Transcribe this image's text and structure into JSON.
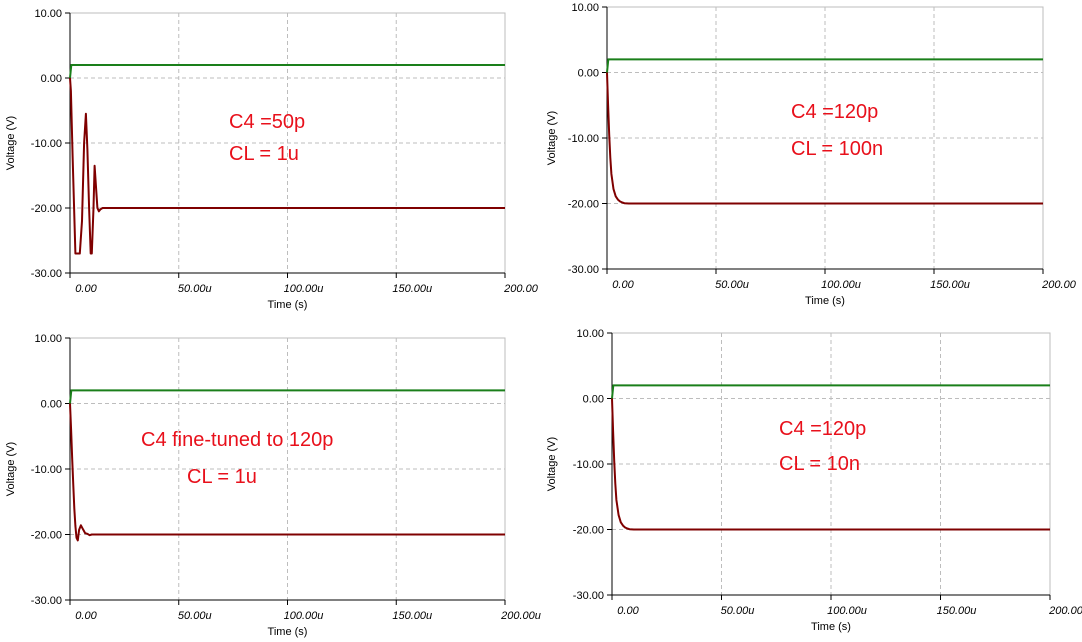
{
  "colors": {
    "green": "#1a7f1a",
    "red": "#7f0000",
    "annotation": "#e8101b",
    "grid": "#bdbdbd"
  },
  "chart_data": [
    {
      "type": "line",
      "xlabel": "Time (s)",
      "ylabel": "Voltage (V)",
      "xlim": [
        0,
        200
      ],
      "ylim": [
        -30,
        10
      ],
      "x_unit": "microseconds",
      "x_ticks": [
        "0.00",
        "50.00u",
        "100.00u",
        "150.00u",
        "200.00"
      ],
      "y_ticks": [
        "10.00",
        "0.00",
        "-10.00",
        "-20.00",
        "-30.00"
      ],
      "grid": true,
      "annotations": [
        "C4 =50p",
        "CL = 1u"
      ],
      "series": [
        {
          "color": "green",
          "x": [
            0,
            0.6,
            200
          ],
          "y": [
            0,
            2,
            2
          ]
        },
        {
          "color": "red",
          "x": [
            0,
            0.4,
            1.2,
            2.5,
            3.5,
            4.5,
            5.5,
            6.5,
            7.3,
            8.0,
            8.8,
            9.5,
            10.0,
            10.8,
            11.3,
            12.0,
            12.6,
            13.3,
            14.0,
            15.0,
            17.0,
            200
          ],
          "y": [
            0,
            -2,
            -12,
            -27,
            -27,
            -27,
            -22,
            -10,
            -5.5,
            -11,
            -20,
            -27,
            -27,
            -20,
            -13.5,
            -17,
            -20,
            -20.5,
            -20.2,
            -20,
            -20,
            -20
          ]
        }
      ]
    },
    {
      "type": "line",
      "xlabel": "Time (s)",
      "ylabel": "Voltage (V)",
      "xlim": [
        0,
        200
      ],
      "ylim": [
        -30,
        10
      ],
      "x_unit": "microseconds",
      "x_ticks": [
        "0.00",
        "50.00u",
        "100.00u",
        "150.00u",
        "200.00"
      ],
      "y_ticks": [
        "10.00",
        "0.00",
        "-10.00",
        "-20.00",
        "-30.00"
      ],
      "grid": true,
      "annotations": [
        "C4 =120p",
        "CL = 100n"
      ],
      "series": [
        {
          "color": "green",
          "x": [
            0,
            0.6,
            200
          ],
          "y": [
            0,
            2,
            2
          ]
        },
        {
          "color": "red",
          "x": [
            0,
            0.5,
            1,
            1.5,
            2,
            3,
            4,
            5,
            6,
            7,
            8,
            10,
            12,
            200
          ],
          "y": [
            0,
            -5,
            -9.5,
            -13,
            -15.5,
            -17.8,
            -18.9,
            -19.4,
            -19.7,
            -19.85,
            -19.95,
            -20,
            -20,
            -20
          ]
        }
      ]
    },
    {
      "type": "line",
      "xlabel": "Time (s)",
      "ylabel": "Voltage (V)",
      "xlim": [
        0,
        200
      ],
      "ylim": [
        -30,
        10
      ],
      "x_unit": "microseconds",
      "x_ticks": [
        "0.00",
        "50.00u",
        "100.00u",
        "150.00u",
        "200.00u"
      ],
      "y_ticks": [
        "10.00",
        "0.00",
        "-10.00",
        "-20.00",
        "-30.00"
      ],
      "grid": true,
      "annotations": [
        "C4 fine-tuned to 120p",
        "CL = 1u"
      ],
      "series": [
        {
          "color": "green",
          "x": [
            0,
            0.6,
            200
          ],
          "y": [
            0,
            2,
            2
          ]
        },
        {
          "color": "red",
          "x": [
            0,
            0.5,
            1,
            1.5,
            2,
            2.5,
            3,
            3.6,
            4.2,
            5,
            6,
            7,
            8,
            9,
            10,
            12,
            200
          ],
          "y": [
            0,
            -4,
            -8.5,
            -12.5,
            -16,
            -18.7,
            -20.5,
            -20.9,
            -19.3,
            -18.6,
            -19.2,
            -19.8,
            -19.9,
            -20.1,
            -20,
            -20,
            -20
          ]
        }
      ]
    },
    {
      "type": "line",
      "xlabel": "Time (s)",
      "ylabel": "Voltage (V)",
      "xlim": [
        0,
        200
      ],
      "ylim": [
        -30,
        10
      ],
      "x_unit": "microseconds",
      "x_ticks": [
        "0.00",
        "50.00u",
        "100.00u",
        "150.00u",
        "200.00"
      ],
      "y_ticks": [
        "10.00",
        "0.00",
        "-10.00",
        "-20.00",
        "-30.00"
      ],
      "grid": true,
      "annotations": [
        "C4 =120p",
        "CL = 10n"
      ],
      "series": [
        {
          "color": "green",
          "x": [
            0,
            0.6,
            200
          ],
          "y": [
            0,
            2,
            2
          ]
        },
        {
          "color": "red",
          "x": [
            0,
            0.5,
            1,
            1.5,
            2,
            3,
            4,
            5,
            6,
            7,
            8,
            10,
            12,
            200
          ],
          "y": [
            0,
            -5,
            -9.5,
            -13,
            -15.5,
            -17.8,
            -18.9,
            -19.4,
            -19.7,
            -19.85,
            -19.95,
            -20,
            -20,
            -20
          ]
        }
      ]
    }
  ]
}
